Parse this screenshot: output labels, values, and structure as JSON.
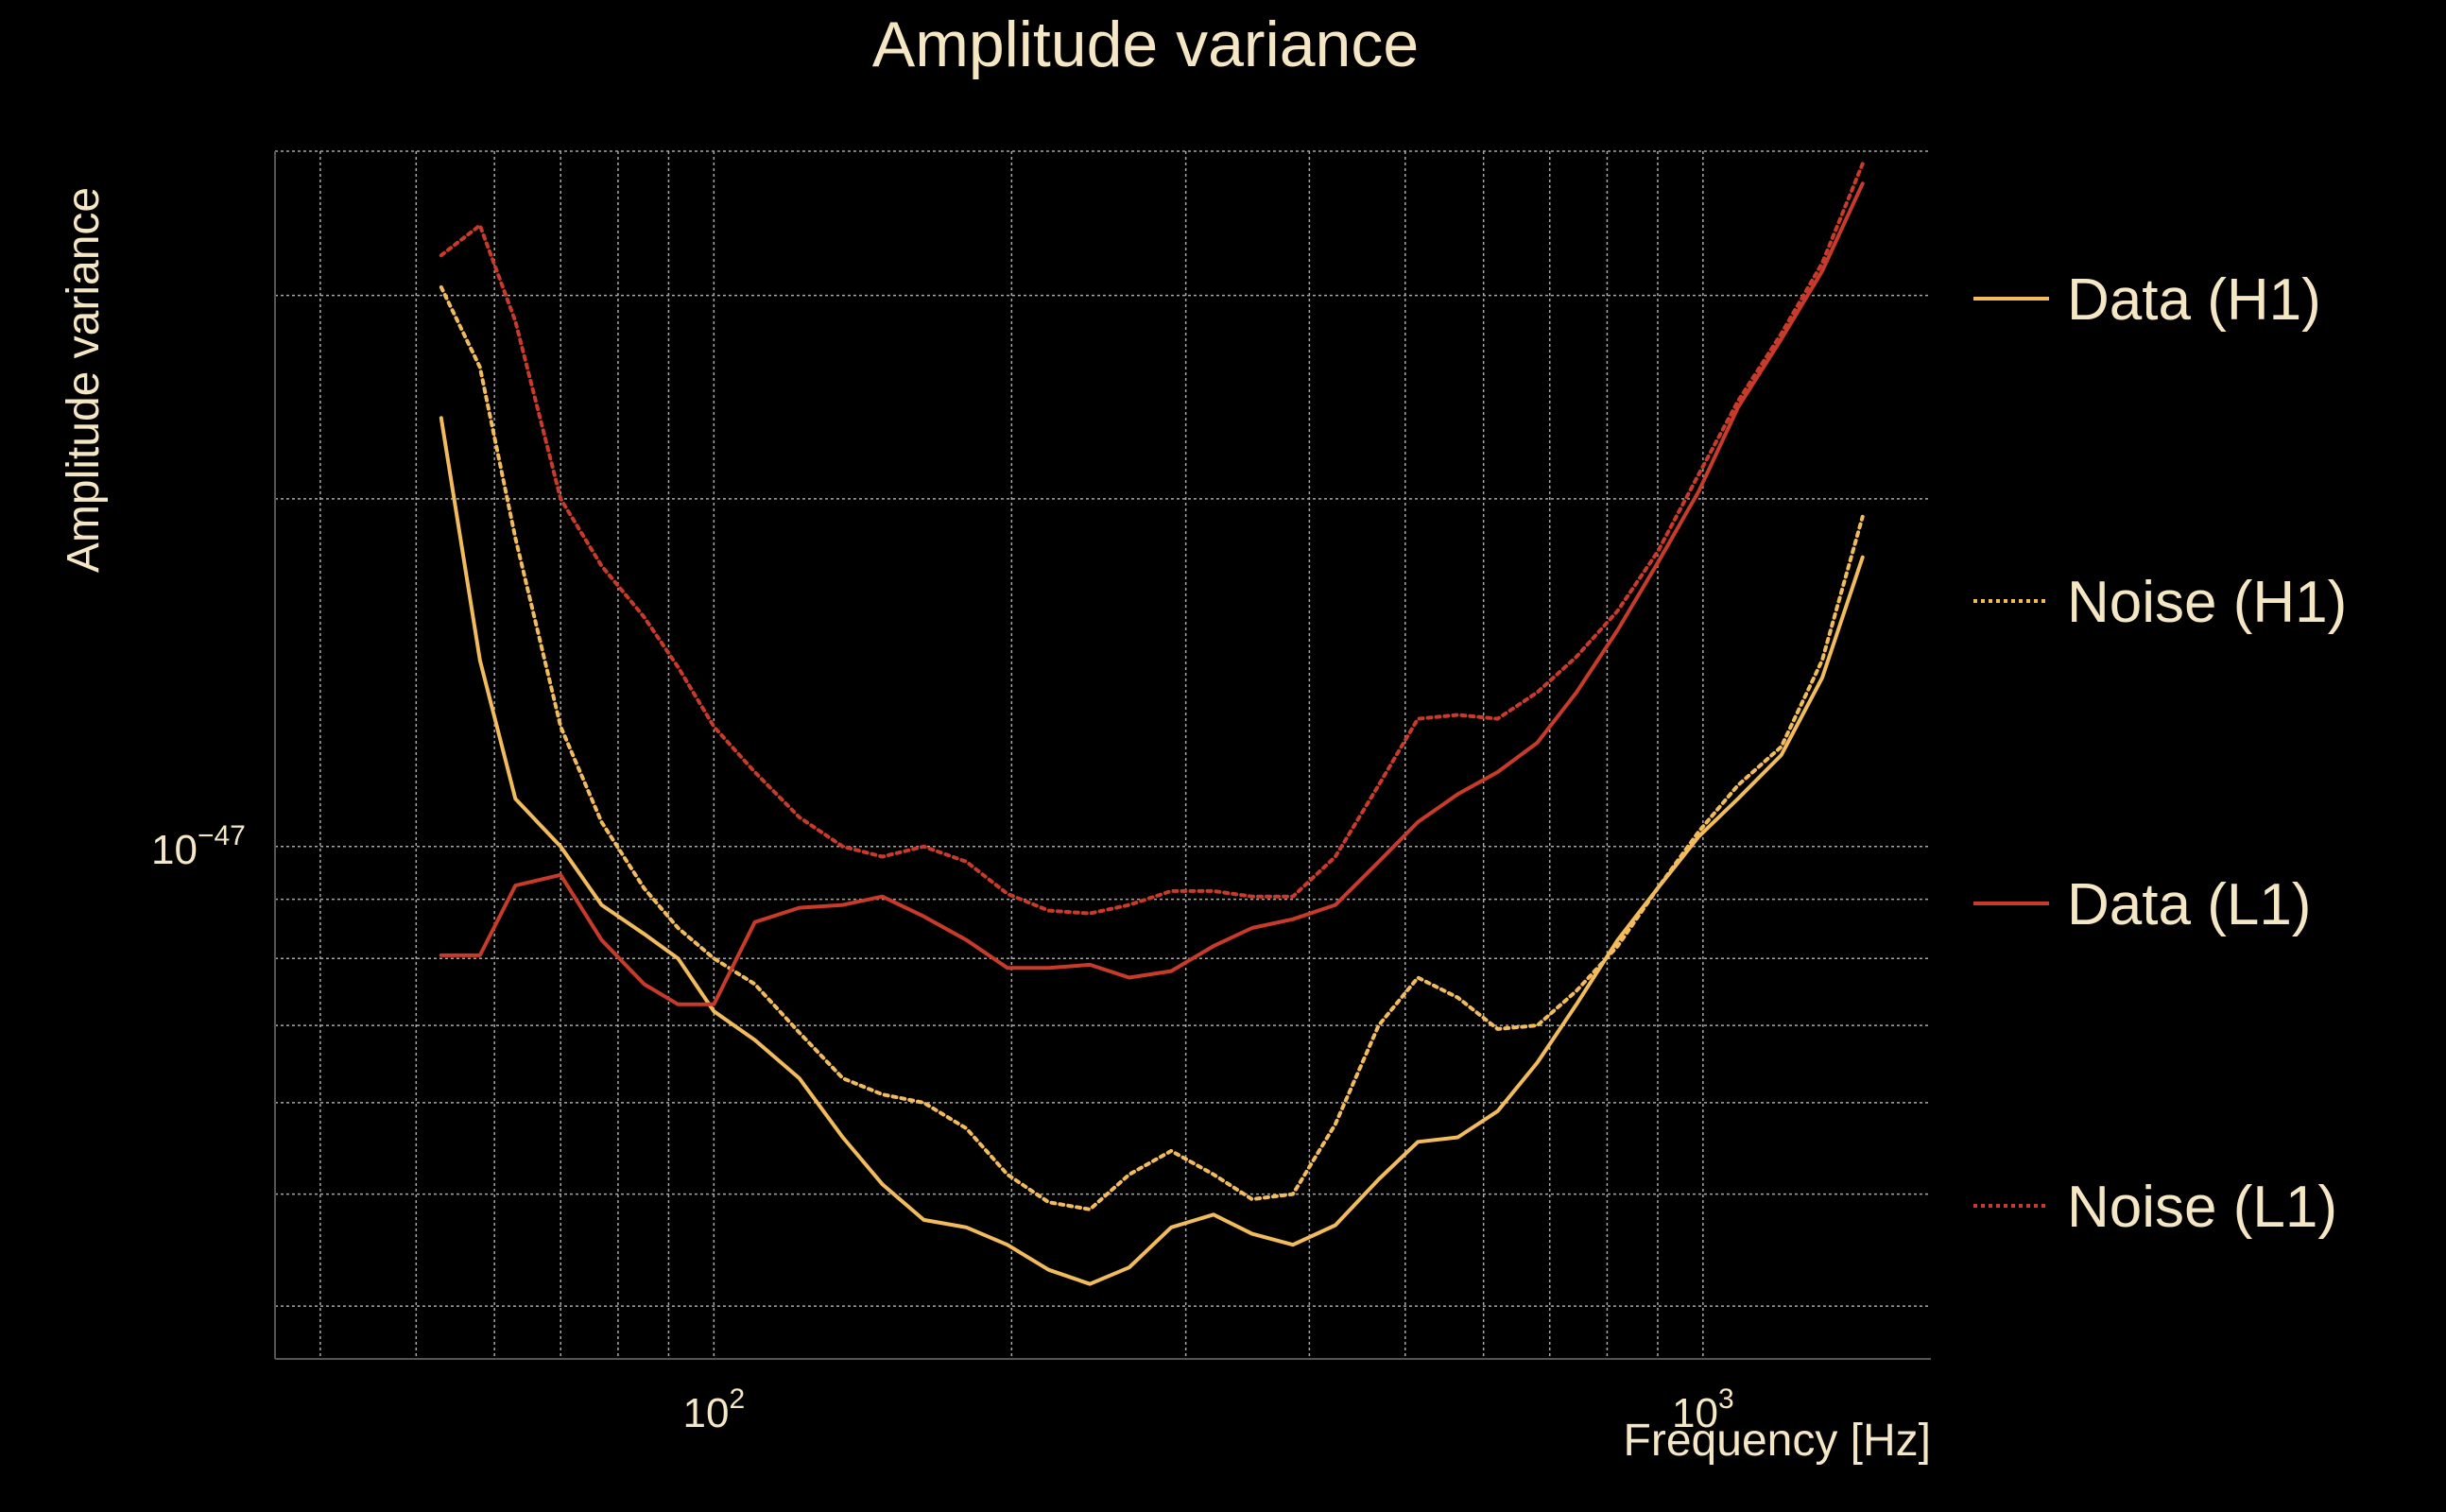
{
  "colors": {
    "background": "#000000",
    "text": "#f5e6c4",
    "h1": "#f2bb5c",
    "l1": "#c83a2a",
    "grid": "#a8a8a8"
  },
  "chart_data": {
    "type": "line",
    "title": "Amplitude variance",
    "xlabel": "Frequency [Hz]",
    "ylabel": "Amplitude variance",
    "xscale": "log",
    "yscale": "log",
    "xlim": [
      36,
      1700
    ],
    "ylim": [
      3.6e-48,
      4e-47
    ],
    "grid": true,
    "x_ticks": [
      {
        "value": 100,
        "base": "10",
        "exp": "2"
      },
      {
        "value": 1000,
        "base": "10",
        "exp": "3"
      }
    ],
    "y_ticks": [
      {
        "value": 1e-47,
        "base": "10",
        "exp": "−47"
      }
    ],
    "legend_position": "right",
    "series": [
      {
        "name": "Data (H1)",
        "color": "#f2bb5c",
        "dash": "solid",
        "x": [
          53,
          58,
          63,
          70,
          77,
          85,
          92,
          100,
          110,
          122,
          135,
          148,
          163,
          180,
          198,
          218,
          240,
          263,
          290,
          320,
          350,
          385,
          425,
          470,
          515,
          565,
          620,
          680,
          745,
          820,
          900,
          990,
          1085,
          1200,
          1320,
          1450
        ],
        "y": [
          2.35e-47,
          1.45e-47,
          1.1e-47,
          1e-47,
          8.9e-48,
          8.4e-48,
          8e-48,
          7.2e-48,
          6.8e-48,
          6.3e-48,
          5.6e-48,
          5.1e-48,
          4.75e-48,
          4.68e-48,
          4.52e-48,
          4.3e-48,
          4.18e-48,
          4.32e-48,
          4.68e-48,
          4.8e-48,
          4.62e-48,
          4.52e-48,
          4.7e-48,
          5.15e-48,
          5.55e-48,
          5.6e-48,
          5.9e-48,
          6.5e-48,
          7.3e-48,
          8.3e-48,
          9.2e-48,
          1.02e-47,
          1.1e-47,
          1.2e-47,
          1.4e-47,
          1.78e-47
        ]
      },
      {
        "name": "Noise (H1)",
        "color": "#f2bb5c",
        "dash": "dotted",
        "x": [
          53,
          58,
          63,
          70,
          77,
          85,
          92,
          100,
          110,
          122,
          135,
          148,
          163,
          180,
          198,
          218,
          240,
          263,
          290,
          320,
          350,
          385,
          425,
          470,
          515,
          565,
          620,
          680,
          745,
          820,
          900,
          990,
          1085,
          1200,
          1320,
          1450
        ],
        "y": [
          3.05e-47,
          2.6e-47,
          1.85e-47,
          1.27e-47,
          1.05e-47,
          9.2e-48,
          8.5e-48,
          8e-48,
          7.6e-48,
          6.9e-48,
          6.3e-48,
          6.1e-48,
          6e-48,
          5.7e-48,
          5.2e-48,
          4.92e-48,
          4.85e-48,
          5.2e-48,
          5.45e-48,
          5.2e-48,
          4.95e-48,
          5e-48,
          5.75e-48,
          7e-48,
          7.7e-48,
          7.4e-48,
          6.95e-48,
          7e-48,
          7.5e-48,
          8.2e-48,
          9.2e-48,
          1.03e-47,
          1.13e-47,
          1.22e-47,
          1.45e-47,
          1.93e-47
        ]
      },
      {
        "name": "Data (L1)",
        "color": "#c83a2a",
        "dash": "solid",
        "x": [
          53,
          58,
          63,
          70,
          77,
          85,
          92,
          100,
          110,
          122,
          135,
          148,
          163,
          180,
          198,
          218,
          240,
          263,
          290,
          320,
          350,
          385,
          425,
          470,
          515,
          565,
          620,
          680,
          745,
          820,
          900,
          990,
          1085,
          1200,
          1320,
          1450
        ],
        "y": [
          8.05e-48,
          8.05e-48,
          9.25e-48,
          9.45e-48,
          8.3e-48,
          7.6e-48,
          7.3e-48,
          7.3e-48,
          8.6e-48,
          8.85e-48,
          8.9e-48,
          9.05e-48,
          8.7e-48,
          8.3e-48,
          7.85e-48,
          7.85e-48,
          7.9e-48,
          7.7e-48,
          7.8e-48,
          8.2e-48,
          8.5e-48,
          8.65e-48,
          8.9e-48,
          9.7e-48,
          1.05e-47,
          1.11e-47,
          1.16e-47,
          1.23e-47,
          1.36e-47,
          1.54e-47,
          1.76e-47,
          2.03e-47,
          2.4e-47,
          2.75e-47,
          3.15e-47,
          3.75e-47
        ]
      },
      {
        "name": "Noise (L1)",
        "color": "#c83a2a",
        "dash": "dotted",
        "x": [
          53,
          58,
          63,
          70,
          77,
          85,
          92,
          100,
          110,
          122,
          135,
          148,
          163,
          180,
          198,
          218,
          240,
          263,
          290,
          320,
          350,
          385,
          425,
          470,
          515,
          565,
          620,
          680,
          745,
          820,
          900,
          990,
          1085,
          1200,
          1320,
          1450
        ],
        "y": [
          3.25e-47,
          3.45e-47,
          2.85e-47,
          2e-47,
          1.75e-47,
          1.58e-47,
          1.43e-47,
          1.27e-47,
          1.16e-47,
          1.06e-47,
          1e-47,
          9.8e-48,
          1e-47,
          9.7e-48,
          9.1e-48,
          8.8e-48,
          8.75e-48,
          8.9e-48,
          9.15e-48,
          9.15e-48,
          9.05e-48,
          9.05e-48,
          9.8e-48,
          1.13e-47,
          1.29e-47,
          1.3e-47,
          1.29e-47,
          1.36e-47,
          1.46e-47,
          1.6e-47,
          1.8e-47,
          2.1e-47,
          2.43e-47,
          2.78e-47,
          3.2e-47,
          3.9e-47
        ]
      }
    ]
  }
}
